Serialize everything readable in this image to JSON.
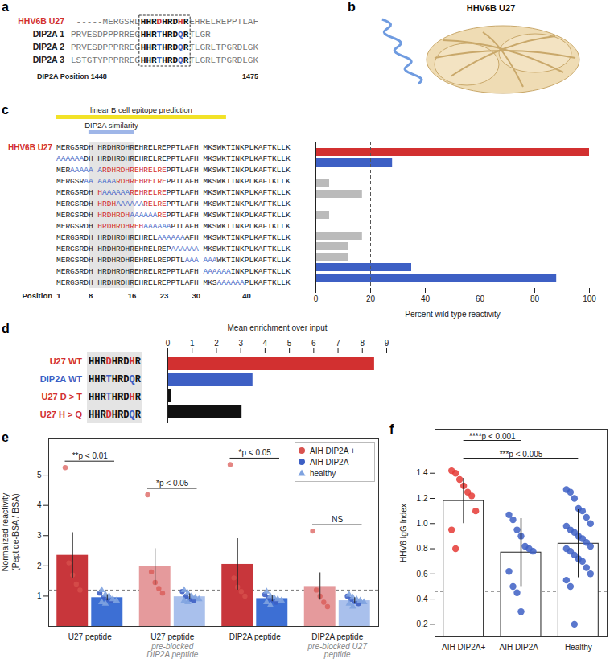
{
  "panels": {
    "a": {
      "letter": "a",
      "rows": [
        {
          "name": "HHV6B U27",
          "name_color": "#d23030",
          "pre": "-----MERGSRD",
          "box": [
            [
              "HHR",
              "#111111"
            ],
            [
              "D",
              "#d23030"
            ],
            [
              "HRD",
              "#111111"
            ],
            [
              "H",
              "#d23030"
            ],
            [
              "R",
              "#111111"
            ]
          ],
          "post": "EHRELREPPTLAF"
        },
        {
          "name": "DIP2A 1",
          "name_color": "#222222",
          "pre": "PRVESDPPPRREG",
          "box": [
            [
              "HHR",
              "#111111"
            ],
            [
              "T",
              "#3d5fc4"
            ],
            [
              "HRD",
              "#111111"
            ],
            [
              "Q",
              "#3d5fc4"
            ],
            [
              "R",
              "#111111"
            ]
          ],
          "post": "TLGR--------"
        },
        {
          "name": "DIP2A 2",
          "name_color": "#222222",
          "pre": "PRVESDPPPRREG",
          "box": [
            [
              "HHR",
              "#111111"
            ],
            [
              "T",
              "#3d5fc4"
            ],
            [
              "HRD",
              "#111111"
            ],
            [
              "Q",
              "#3d5fc4"
            ],
            [
              "R",
              "#111111"
            ]
          ],
          "post": "TLGRLTPGRDLGK"
        },
        {
          "name": "DIP2A 3",
          "name_color": "#222222",
          "pre": "LSTGTYPPPRREG",
          "box": [
            [
              "HHR",
              "#111111"
            ],
            [
              "T",
              "#3d5fc4"
            ],
            [
              "HRD",
              "#111111"
            ],
            [
              "Q",
              "#3d5fc4"
            ],
            [
              "R",
              "#111111"
            ]
          ],
          "post": "TLGRLTPGRDLGK"
        }
      ],
      "footer_left": "DIP2A Position 1448",
      "footer_right": "1475"
    },
    "b": {
      "letter": "b",
      "title": "HHV6B U27"
    }
  },
  "chart_data": [
    {
      "panel": "c",
      "type": "bar",
      "orientation": "horizontal",
      "tick_labels": "x",
      "xlabel": "Percent wild type reactivity",
      "xlim": [
        0,
        100
      ],
      "xticks": [
        0,
        20,
        40,
        60,
        80,
        100
      ],
      "threshold": 20,
      "categories": [
        "HHV6B U27",
        null,
        null,
        null,
        null,
        null,
        null,
        null,
        null,
        null,
        null,
        null,
        null
      ],
      "values": [
        100,
        28,
        0,
        5,
        17,
        0,
        5,
        0,
        17,
        12,
        12,
        35,
        88
      ],
      "colors": [
        "#d23030",
        "#3d5fc4",
        "#bbbbbb",
        "#bbbbbb",
        "#bbbbbb",
        "#bbbbbb",
        "#bbbbbb",
        "#bbbbbb",
        "#bbbbbb",
        "#bbbbbb",
        "#bbbbbb",
        "#3d5fc4",
        "#3d5fc4"
      ],
      "annotations": [
        {
          "text": "linear B cell epitope prediction",
          "span": [
            1,
            35
          ],
          "color": "#f2e227"
        },
        {
          "text": "DIP2A similarity",
          "span": [
            8,
            16
          ],
          "color": "#9fb6e8"
        }
      ],
      "positions": [
        1,
        8,
        16,
        23,
        30,
        40
      ],
      "positions_label": "Position",
      "sequences": [
        [
          [
            "MERGSRDH HRDHRDHREHRELREPPTLAFH MKSWKTINKPLKAFTKLLK",
            "#222222"
          ]
        ],
        [
          [
            "AAAAAA",
            "#3d5fc4"
          ],
          [
            "DH HRDHRDHREHRELREPPTLAFH MKSWKTINKPLKAFTKLLK",
            "#222222"
          ]
        ],
        [
          [
            "MER",
            "#222222"
          ],
          [
            "AAAAA A",
            "#3d5fc4"
          ],
          [
            "RDHRDHREHRELRE",
            "#d23030"
          ],
          [
            "PPTLAFH MKSWKTINKPLKAFTKLLK",
            "#222222"
          ]
        ],
        [
          [
            "MERGSR",
            "#222222"
          ],
          [
            "AA AAAA",
            "#3d5fc4"
          ],
          [
            "RDHREHRELRE",
            "#d23030"
          ],
          [
            "PPTLAFH MKSWKTINKPLKAFTKLLK",
            "#222222"
          ]
        ],
        [
          [
            "MERGSRDH ",
            "#222222"
          ],
          [
            "H",
            "#d23030"
          ],
          [
            "AAAAAA",
            "#3d5fc4"
          ],
          [
            "REHRELRE",
            "#d23030"
          ],
          [
            "PPTLAFH MKSWKTINKPLKAFTKLLK",
            "#222222"
          ]
        ],
        [
          [
            "MERGSRDH ",
            "#222222"
          ],
          [
            "HRDH",
            "#d23030"
          ],
          [
            "AAAAAA",
            "#3d5fc4"
          ],
          [
            "RELRE",
            "#d23030"
          ],
          [
            "PPTLAFH MKSWKTINKPLKAFTKLLK",
            "#222222"
          ]
        ],
        [
          [
            "MERGSRDH ",
            "#222222"
          ],
          [
            "HRDHRDH",
            "#d23030"
          ],
          [
            "AAAAAA",
            "#3d5fc4"
          ],
          [
            "RE",
            "#d23030"
          ],
          [
            "PPTLAFH MKSWKTINKPLKAFTKLLK",
            "#222222"
          ]
        ],
        [
          [
            "MERGSRDH ",
            "#222222"
          ],
          [
            "HRDHRDHREH",
            "#d23030"
          ],
          [
            "AAAAAA",
            "#3d5fc4"
          ],
          [
            "PTLAFH MKSWKTINKPLKAFTKLLK",
            "#222222"
          ]
        ],
        [
          [
            "MERGSRDH HRDHRDHREHREL",
            "#222222"
          ],
          [
            "AAAAAA",
            "#3d5fc4"
          ],
          [
            "AFH MKSWKTINKPLKAFTKLLK",
            "#222222"
          ]
        ],
        [
          [
            "MERGSRDH HRDHRDHREHRELREP",
            "#222222"
          ],
          [
            "AAAAAA",
            "#3d5fc4"
          ],
          [
            " MKSWKTINKPLKAFTKLLK",
            "#222222"
          ]
        ],
        [
          [
            "MERGSRDH HRDHRDHREHRELREPPTL",
            "#222222"
          ],
          [
            "AAA AAA",
            "#3d5fc4"
          ],
          [
            "WKTINKPLKAFTKLLK",
            "#222222"
          ]
        ],
        [
          [
            "MERGSRDH HRDHRDHREHRELREPPTLAFH ",
            "#222222"
          ],
          [
            "AAAAAA",
            "#3d5fc4"
          ],
          [
            "INKPLKAFTKLLK",
            "#222222"
          ]
        ],
        [
          [
            "MERGSRDH HRDHRDHREHRELREPPTLAFH MKS",
            "#222222"
          ],
          [
            "AAAAAA",
            "#3d5fc4"
          ],
          [
            "PLKAFTKLLK",
            "#222222"
          ]
        ]
      ]
    },
    {
      "panel": "d",
      "type": "bar",
      "orientation": "horizontal",
      "xlabel": "Mean enrichment over input",
      "xlim": [
        0,
        9
      ],
      "xticks": [
        0,
        1,
        2,
        3,
        4,
        5,
        6,
        7,
        8,
        9
      ],
      "categories": [
        "U27 WT",
        "DIP2A WT",
        "U27 D > T",
        "U27 H > Q"
      ],
      "category_colors": [
        "#d23030",
        "#3d5fc4",
        "#d23030",
        "#d23030"
      ],
      "values": [
        8.5,
        3.5,
        0.15,
        3.05
      ],
      "colors": [
        "#d23030",
        "#3d5fc4",
        "#111111",
        "#111111"
      ],
      "sequences": [
        [
          [
            "HHR",
            "#111111"
          ],
          [
            "D",
            "#d23030"
          ],
          [
            "HRD",
            "#111111"
          ],
          [
            "H",
            "#d23030"
          ],
          [
            "R",
            "#111111"
          ]
        ],
        [
          [
            "HHR",
            "#111111"
          ],
          [
            "T",
            "#3d5fc4"
          ],
          [
            "HRD",
            "#111111"
          ],
          [
            "Q",
            "#3d5fc4"
          ],
          [
            "R",
            "#111111"
          ]
        ],
        [
          [
            "HHR",
            "#111111"
          ],
          [
            "T",
            "#3d5fc4"
          ],
          [
            "HRD",
            "#111111"
          ],
          [
            "H",
            "#d23030"
          ],
          [
            "R",
            "#111111"
          ]
        ],
        [
          [
            "HHR",
            "#111111"
          ],
          [
            "D",
            "#d23030"
          ],
          [
            "HRD",
            "#111111"
          ],
          [
            "Q",
            "#3d5fc4"
          ],
          [
            "R",
            "#111111"
          ]
        ]
      ]
    },
    {
      "panel": "e",
      "type": "bar",
      "legend": "top-right",
      "ylabel": "Normalized reactivity (Peptide-BSA / BSA)",
      "ylim": [
        0,
        6.2
      ],
      "yticks": [
        1,
        2,
        3,
        4,
        5
      ],
      "threshold": 1.2,
      "categories": [
        "U27 peptide",
        "U27 peptide",
        "DIP2A peptide",
        "DIP2A peptide"
      ],
      "sublabels": [
        null,
        "pre-blocked DIP2A peptide",
        null,
        "pre-blocked U27 peptide"
      ],
      "bars": [
        {
          "values": [
            2.35,
            1.97,
            2.05,
            1.32
          ],
          "errors": [
            0.75,
            0.6,
            0.85,
            0.45
          ],
          "colors": [
            "#c8363b",
            "#e59a9c",
            "#c8363b",
            "#e59a9c"
          ]
        },
        {
          "values": [
            0.95,
            0.98,
            0.92,
            0.85
          ],
          "errors": [
            0.1,
            0.1,
            0.1,
            0.1
          ],
          "colors": [
            "#3d6fd4",
            "#a9c0ec",
            "#3d6fd4",
            "#a9c0ec"
          ]
        }
      ],
      "series": [
        {
          "name": "AIH DIP2A +",
          "color": "#d9534f",
          "marker": "circle",
          "points": [
            [
              5.25,
              2.1,
              1.7,
              1.4,
              1.2
            ],
            [
              4.35,
              1.8,
              1.45,
              1.25,
              1.1
            ],
            [
              5.35,
              1.6,
              1.3,
              1.15,
              1.0
            ],
            [
              3.15,
              1.2,
              1.0,
              0.8,
              0.65
            ]
          ]
        },
        {
          "name": "AIH DIP2A -",
          "color": "#3d5fc4",
          "marker": "circle",
          "points": [
            [
              1.1,
              0.95,
              0.9,
              0.85
            ],
            [
              1.15,
              1.0,
              0.9,
              0.85
            ],
            [
              1.05,
              0.95,
              0.88,
              0.8
            ],
            [
              1.0,
              0.9,
              0.82,
              0.75
            ]
          ]
        },
        {
          "name": "healthy",
          "color": "#7fa3e0",
          "marker": "triangle",
          "points": [
            [
              1.2,
              1.05,
              1.0,
              0.9,
              0.85,
              0.8,
              0.75
            ],
            [
              1.2,
              1.1,
              1.0,
              0.95,
              0.9,
              0.85,
              0.8
            ],
            [
              1.15,
              1.0,
              0.95,
              0.9,
              0.85,
              0.8,
              0.7
            ],
            [
              1.05,
              0.95,
              0.9,
              0.85,
              0.8,
              0.75,
              0.65
            ]
          ]
        }
      ],
      "annotations": [
        {
          "text": "**p < 0.01",
          "category": 0
        },
        {
          "text": "*p < 0.05",
          "category": 1
        },
        {
          "text": "*p < 0.05",
          "category": 2
        },
        {
          "text": "NS",
          "category": 3
        }
      ]
    },
    {
      "panel": "f",
      "type": "bar",
      "ylabel": "HHV6 IgG Index",
      "ylim": [
        0.1,
        1.75
      ],
      "yticks": [
        0.2,
        0.4,
        0.6,
        0.8,
        {
          "value": 1,
          "label": "1.0"
        },
        1.2,
        1.4
      ],
      "threshold": 0.46,
      "categories": [
        "AIH DIP2A+",
        "AIH DIP2A -",
        "Healthy"
      ],
      "values": [
        1.18,
        0.77,
        0.84
      ],
      "errors": [
        0.18,
        0.27,
        0.27
      ],
      "color": "#ffffff",
      "colors": [
        "#e53935",
        "#3d5fc4",
        "#3d5fc4"
      ],
      "points": [
        [
          1.42,
          1.4,
          1.35,
          1.3,
          1.25,
          1.22,
          1.1,
          0.95,
          0.8
        ],
        [
          1.07,
          1.03,
          0.95,
          0.9,
          0.82,
          0.8,
          0.78,
          0.62,
          0.5,
          0.45,
          0.3
        ],
        [
          1.27,
          1.25,
          1.2,
          1.12,
          1.1,
          1.05,
          1.0,
          0.98,
          0.95,
          0.93,
          0.9,
          0.88,
          0.85,
          0.82,
          0.8,
          0.78,
          0.75,
          0.72,
          0.7,
          0.65,
          0.6,
          0.55,
          0.5,
          0.2
        ]
      ],
      "annotations": [
        {
          "text": "****p < 0.001",
          "from": 0,
          "to": 1
        },
        {
          "text": "***p < 0.005",
          "from": 0,
          "to": 2
        }
      ]
    }
  ]
}
